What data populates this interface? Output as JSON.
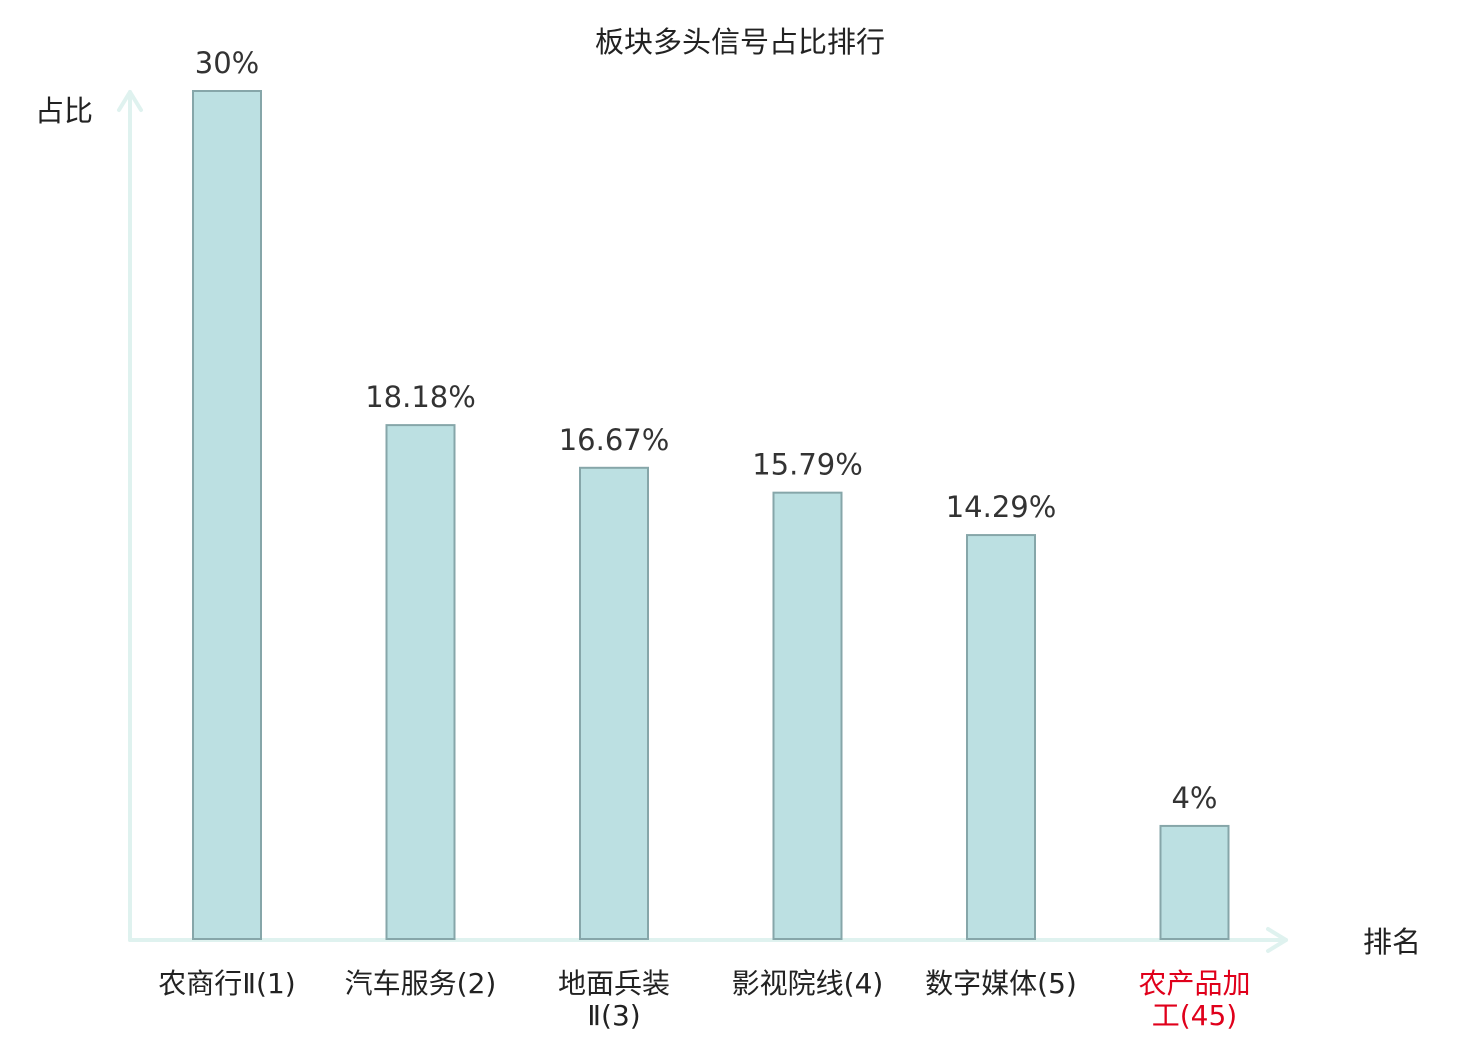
{
  "chart_data": {
    "type": "bar",
    "title": "板块多头信号占比排行",
    "ylabel": "占比",
    "xlabel": "排名",
    "categories": [
      [
        "农商行Ⅱ(1)"
      ],
      [
        "汽车服务(2)"
      ],
      [
        "地面兵装",
        "Ⅱ(3)"
      ],
      [
        "影视院线(4)"
      ],
      [
        "数字媒体(5)"
      ],
      [
        "农产品加",
        "工(45)"
      ]
    ],
    "values": [
      30,
      18.18,
      16.67,
      15.79,
      14.29,
      4
    ],
    "value_labels": [
      "30%",
      "18.18%",
      "16.67%",
      "15.79%",
      "14.29%",
      "4%"
    ],
    "highlight_index": 5,
    "ylim": [
      0,
      30
    ],
    "grid": false,
    "colors": {
      "bar_fill": "#bce0e2",
      "bar_stroke": "#86a6a9",
      "axis": "#dff2ef",
      "text": "#333333",
      "highlight_text": "#e0001b"
    }
  }
}
